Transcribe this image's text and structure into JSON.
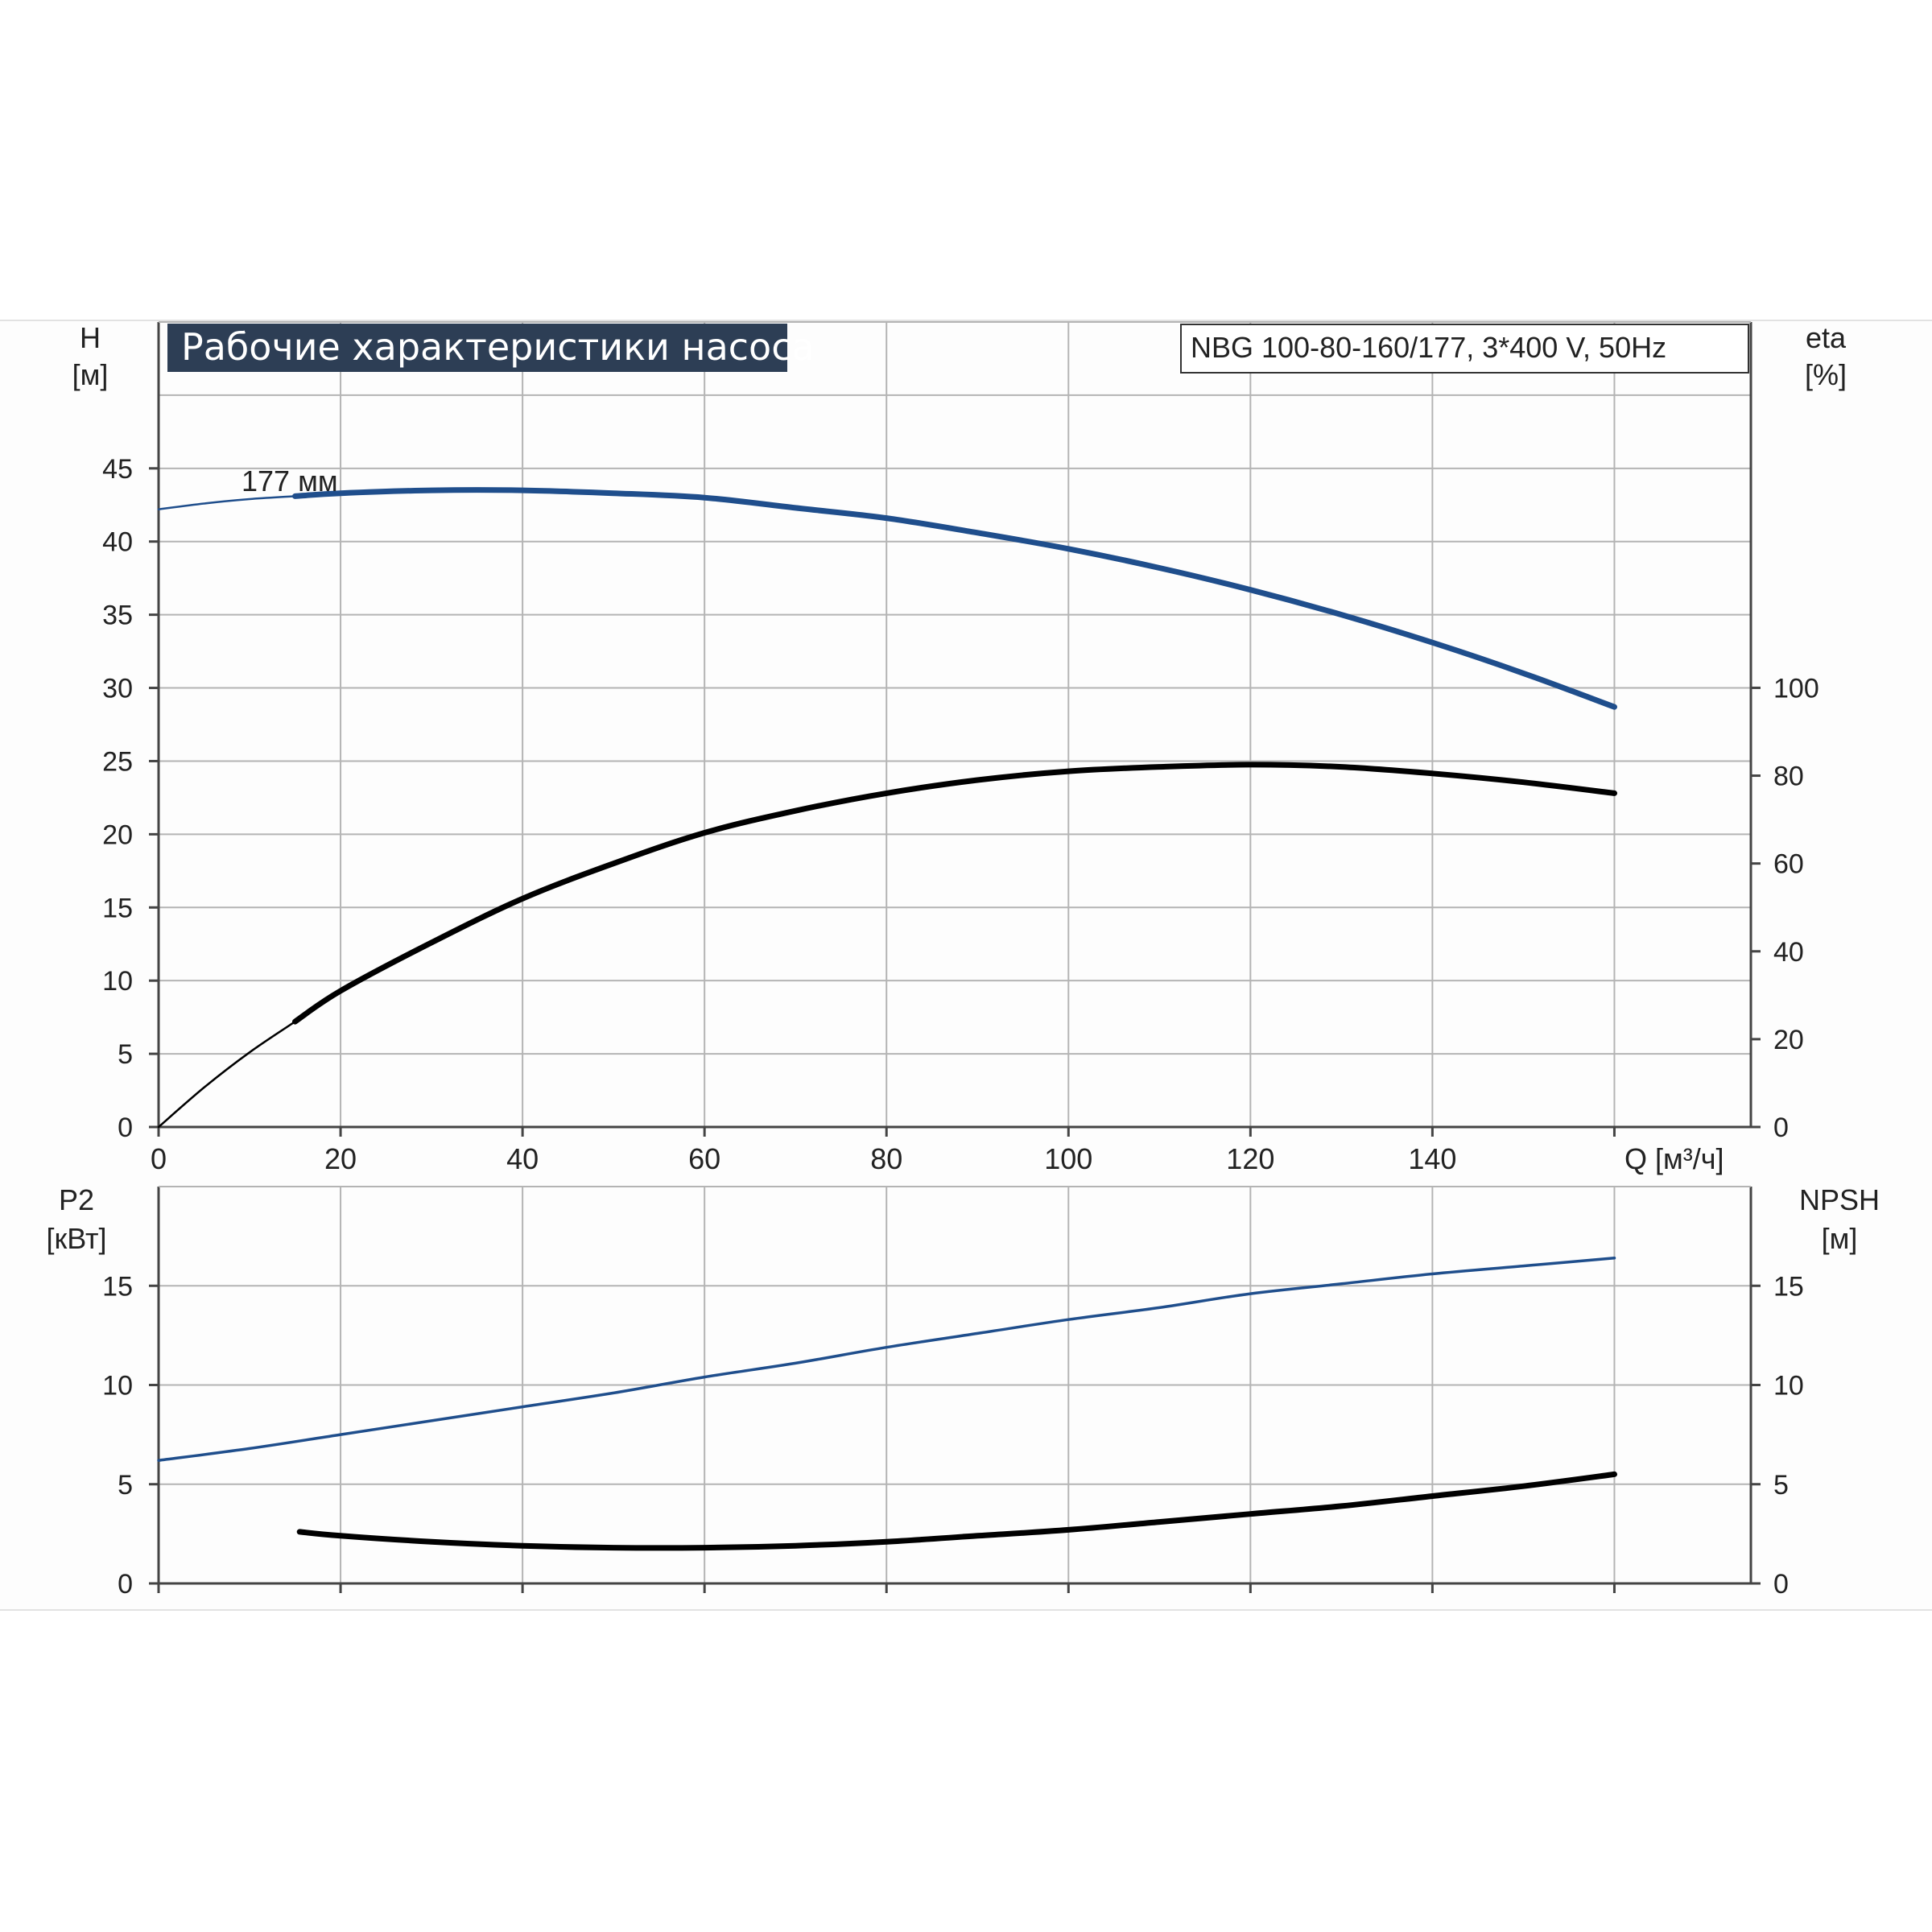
{
  "title": "Рабочие характеристики насоса",
  "subtitle": "NBG 100-80-160/177, 3*400 V, 50Hz",
  "colors": {
    "head": "#1f4e8c",
    "power": "#1f4e8c",
    "eta": "#000000",
    "npsh": "#000000",
    "grid": "#b4b4b4",
    "axis": "#444444",
    "title_bg": "#2d3e55"
  },
  "chart_data": [
    {
      "type": "line",
      "panel": "top",
      "xlabel": "Q [м³/ч]",
      "x_ticks": [
        "0",
        "20",
        "40",
        "60",
        "80",
        "100",
        "120",
        "140"
      ],
      "xlim": [
        0,
        175
      ],
      "left_axis": {
        "label_top": "H",
        "label_unit": "[м]",
        "ylim": [
          0,
          55
        ],
        "ticks": [
          "0",
          "5",
          "10",
          "15",
          "20",
          "25",
          "30",
          "35",
          "40",
          "45"
        ]
      },
      "right_axis": {
        "label_top": "eta",
        "label_unit": "[%]",
        "ylim": [
          0,
          183.3
        ],
        "ticks": [
          "0",
          "20",
          "40",
          "60",
          "80",
          "100"
        ]
      },
      "grid": true,
      "annotations": [
        "177 мм"
      ],
      "series": [
        {
          "key": "head",
          "axis": "left",
          "points": [
            [
              0,
              42.2
            ],
            [
              5,
              42.6
            ],
            [
              10,
              42.9
            ],
            [
              15,
              43.1
            ],
            [
              20,
              43.3
            ],
            [
              30,
              43.5
            ],
            [
              40,
              43.5
            ],
            [
              50,
              43.3
            ],
            [
              60,
              43.0
            ],
            [
              70,
              42.3
            ],
            [
              80,
              41.6
            ],
            [
              90,
              40.6
            ],
            [
              100,
              39.5
            ],
            [
              110,
              38.2
            ],
            [
              120,
              36.7
            ],
            [
              130,
              35.0
            ],
            [
              140,
              33.1
            ],
            [
              150,
              31.0
            ],
            [
              160,
              28.7
            ]
          ],
          "bold_from": 15
        },
        {
          "key": "eta",
          "axis": "right",
          "points": [
            [
              0,
              0
            ],
            [
              5,
              9
            ],
            [
              10,
              17
            ],
            [
              15,
              24
            ],
            [
              20,
              31
            ],
            [
              30,
              42
            ],
            [
              40,
              52
            ],
            [
              50,
              60
            ],
            [
              60,
              67
            ],
            [
              70,
              72
            ],
            [
              80,
              76
            ],
            [
              90,
              79
            ],
            [
              100,
              81
            ],
            [
              110,
              82
            ],
            [
              120,
              82.5
            ],
            [
              130,
              82
            ],
            [
              140,
              80.5
            ],
            [
              150,
              78.5
            ],
            [
              160,
              76
            ]
          ],
          "bold_from": 15
        }
      ]
    },
    {
      "type": "line",
      "panel": "bottom",
      "xlim": [
        0,
        175
      ],
      "left_axis": {
        "label_top": "P2",
        "label_unit": "[кВт]",
        "ylim": [
          0,
          20
        ],
        "ticks": [
          "0",
          "5",
          "10",
          "15"
        ]
      },
      "right_axis": {
        "label_top": "NPSH",
        "label_unit": "[м]",
        "ylim": [
          0,
          20
        ],
        "ticks": [
          "0",
          "5",
          "10",
          "15"
        ]
      },
      "grid": true,
      "series": [
        {
          "key": "power",
          "axis": "left",
          "points": [
            [
              0,
              6.2
            ],
            [
              10,
              6.8
            ],
            [
              20,
              7.5
            ],
            [
              30,
              8.2
            ],
            [
              40,
              8.9
            ],
            [
              50,
              9.6
            ],
            [
              60,
              10.4
            ],
            [
              70,
              11.1
            ],
            [
              80,
              11.9
            ],
            [
              90,
              12.6
            ],
            [
              100,
              13.3
            ],
            [
              110,
              13.9
            ],
            [
              120,
              14.6
            ],
            [
              130,
              15.1
            ],
            [
              140,
              15.6
            ],
            [
              150,
              16.0
            ],
            [
              160,
              16.4
            ]
          ]
        },
        {
          "key": "npsh",
          "axis": "right",
          "points": [
            [
              15.5,
              2.6
            ],
            [
              20,
              2.4
            ],
            [
              30,
              2.1
            ],
            [
              40,
              1.9
            ],
            [
              50,
              1.8
            ],
            [
              60,
              1.8
            ],
            [
              70,
              1.9
            ],
            [
              80,
              2.1
            ],
            [
              90,
              2.4
            ],
            [
              100,
              2.7
            ],
            [
              110,
              3.1
            ],
            [
              120,
              3.5
            ],
            [
              130,
              3.9
            ],
            [
              140,
              4.4
            ],
            [
              150,
              4.9
            ],
            [
              160,
              5.5
            ]
          ],
          "bold_from": 15.5
        }
      ]
    }
  ]
}
